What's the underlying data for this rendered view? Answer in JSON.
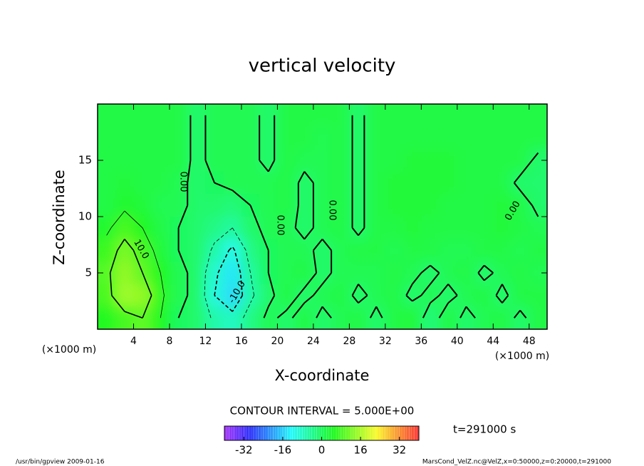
{
  "chart_data": {
    "type": "contour",
    "title": "vertical velocity",
    "xlabel": "X-coordinate",
    "ylabel": "Z-coordinate",
    "x_unit": "(×1000 m)",
    "y_unit": "(×1000 m)",
    "xlim": [
      0,
      50
    ],
    "ylim": [
      0,
      20
    ],
    "xticks": [
      4,
      8,
      12,
      16,
      20,
      24,
      28,
      32,
      36,
      40,
      44,
      48
    ],
    "yticks": [
      5,
      10,
      15
    ],
    "x": [
      1,
      3,
      5,
      7,
      9,
      11,
      13,
      15,
      17,
      19,
      21,
      23,
      25,
      27,
      29,
      31,
      33,
      35,
      37,
      39,
      41,
      43,
      45,
      47,
      49
    ],
    "y": [
      1,
      3,
      5,
      7,
      9,
      11,
      13,
      15,
      17,
      19
    ],
    "z": [
      [
        5,
        8,
        10,
        5,
        0,
        -1,
        -6,
        -8,
        -3,
        1,
        -1,
        2,
        -1,
        1,
        2,
        -1,
        2,
        3,
        -2,
        2,
        -1,
        1,
        2,
        -1,
        2
      ],
      [
        8,
        15,
        14,
        6,
        1,
        -1,
        -10,
        -15,
        -6,
        -1,
        2,
        -1,
        1,
        2,
        -1,
        1,
        2,
        -1,
        1,
        -1,
        1,
        2,
        -1,
        2,
        2
      ],
      [
        9,
        14,
        10,
        5,
        1,
        -1,
        -9,
        -14,
        -5,
        0,
        1,
        2,
        -1,
        1,
        1,
        1,
        2,
        1,
        -1,
        1,
        2,
        -1,
        1,
        2,
        1
      ],
      [
        7,
        12,
        8,
        3,
        0,
        -1,
        -6,
        -11,
        -3,
        0,
        1,
        1,
        -1,
        1,
        2,
        2,
        1,
        2,
        2,
        1,
        1,
        2,
        2,
        1,
        2
      ],
      [
        4,
        8,
        5,
        2,
        0,
        -1,
        -3,
        -5,
        -1,
        1,
        1,
        -1,
        1,
        2,
        -1,
        2,
        2,
        3,
        2,
        2,
        2,
        2,
        3,
        2,
        1
      ],
      [
        2,
        4,
        3,
        1,
        1,
        -1,
        -1,
        -2,
        0,
        1,
        2,
        -1,
        1,
        2,
        -1,
        2,
        3,
        3,
        3,
        2,
        2,
        2,
        3,
        2,
        -1
      ],
      [
        2,
        3,
        2,
        2,
        1,
        -1,
        0,
        1,
        1,
        1,
        2,
        -1,
        1,
        2,
        -1,
        2,
        3,
        3,
        3,
        3,
        2,
        2,
        2,
        -1,
        -1
      ],
      [
        2,
        2,
        2,
        2,
        2,
        -1,
        1,
        1,
        1,
        -1,
        2,
        1,
        1,
        2,
        -1,
        2,
        2,
        3,
        3,
        3,
        2,
        2,
        2,
        2,
        -1
      ],
      [
        2,
        2,
        2,
        2,
        2,
        -1,
        1,
        1,
        1,
        -1,
        2,
        2,
        1,
        2,
        -1,
        2,
        2,
        2,
        2,
        2,
        2,
        2,
        2,
        2,
        2
      ],
      [
        2,
        2,
        2,
        2,
        2,
        -1,
        1,
        1,
        1,
        -1,
        2,
        2,
        2,
        2,
        -1,
        2,
        2,
        2,
        2,
        2,
        2,
        2,
        2,
        2,
        2
      ]
    ],
    "levels": [
      -10,
      -5,
      0,
      5,
      10
    ],
    "contour_labels": [
      {
        "value": 0,
        "label": "0.00"
      },
      {
        "value": 0,
        "label": "0.00"
      },
      {
        "value": 0,
        "label": "0.00"
      },
      {
        "value": 0,
        "label": "0.00"
      },
      {
        "value": 10,
        "label": "10.0"
      },
      {
        "value": -10,
        "label": "-10.0"
      }
    ],
    "contour_interval_text": "CONTOUR INTERVAL = 5.000E+00",
    "colorbar": {
      "lim": [
        -40,
        40
      ],
      "ticks": [
        -32,
        -16,
        0,
        16,
        32
      ]
    },
    "time_text": "t=291000 s",
    "footer_left": "/usr/bin/gpview  2009-01-16",
    "footer_right": "MarsCond_VelZ.nc@VelZ,x=0:50000,z=0:20000,t=291000"
  }
}
